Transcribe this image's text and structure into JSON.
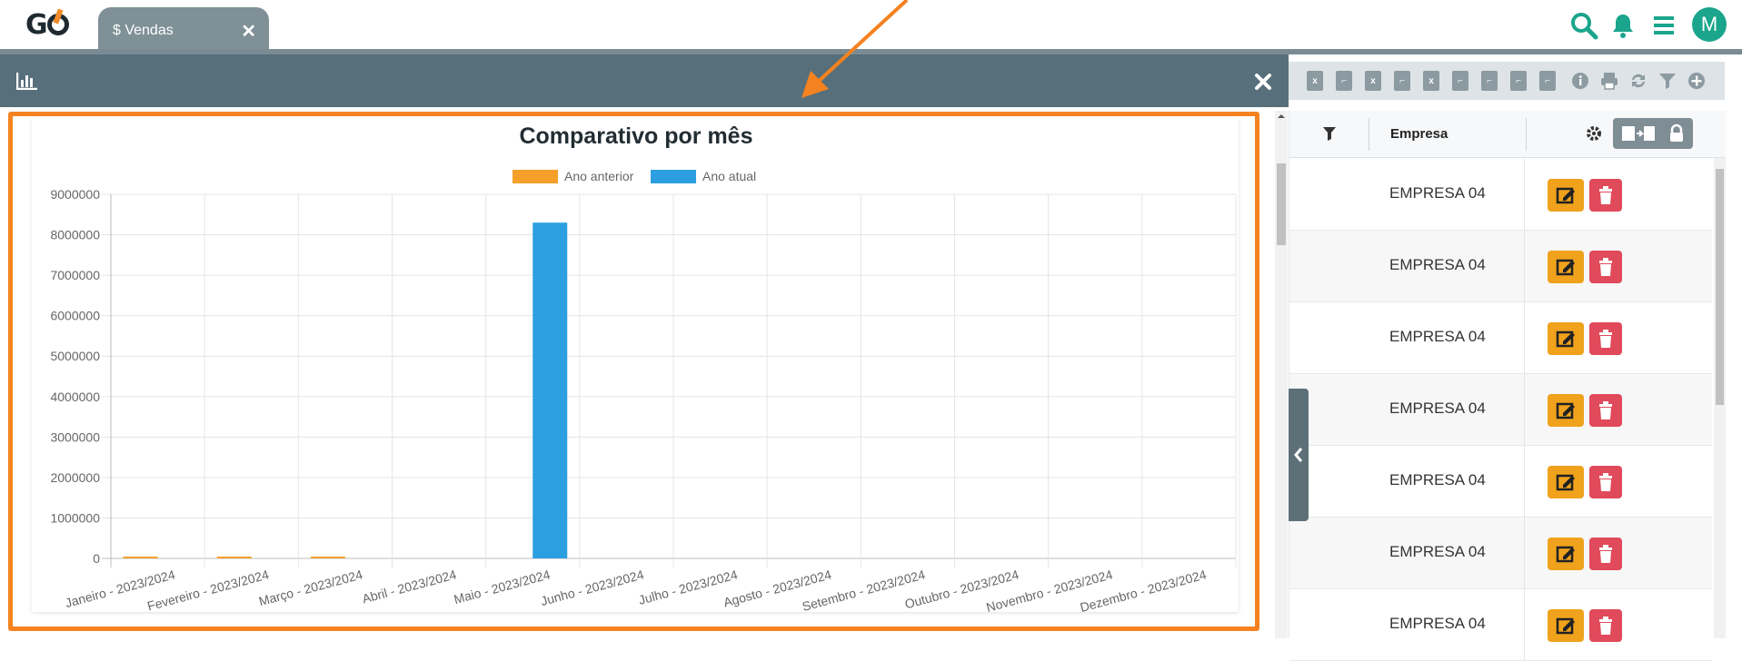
{
  "app": {
    "logo_text": "GO",
    "tab_label": "$ Vendas",
    "avatar_letter": "M"
  },
  "colors": {
    "teal": "#1aa58c",
    "header": "#566f7a",
    "highlight": "#f58220",
    "bar_previous": "#f5a02a",
    "bar_current": "#2c9fe0",
    "edit": "#f0a21c",
    "delete": "#e04a5a"
  },
  "icons": {
    "topbar": [
      "search-icon",
      "bell-icon",
      "menu-icon"
    ],
    "modal_header": "bar-chart-icon",
    "modal_close": "close-icon",
    "toolbar": [
      "excel-icon",
      "pdf-icon",
      "excel-icon",
      "pdf-icon",
      "excel-icon",
      "pdf-icon",
      "pdf-icon",
      "pdf-icon",
      "pdf-icon",
      "info-icon",
      "print-icon",
      "refresh-icon",
      "filter-icon",
      "add-icon"
    ]
  },
  "table": {
    "header_empresa": "Empresa",
    "rows": [
      {
        "empresa": "EMPRESA 04"
      },
      {
        "empresa": "EMPRESA 04"
      },
      {
        "empresa": "EMPRESA 04"
      },
      {
        "empresa": "EMPRESA 04"
      },
      {
        "empresa": "EMPRESA 04"
      },
      {
        "empresa": "EMPRESA 04"
      },
      {
        "empresa": "EMPRESA 04"
      }
    ]
  },
  "chart_data": {
    "type": "bar",
    "title": "Comparativo por mês",
    "categories": [
      "Janeiro - 2023/2024",
      "Fevereiro - 2023/2024",
      "Março - 2023/2024",
      "Abril - 2023/2024",
      "Maio - 2023/2024",
      "Junho - 2023/2024",
      "Julho - 2023/2024",
      "Agosto - 2023/2024",
      "Setembro - 2023/2024",
      "Outubro - 2023/2024",
      "Novembro - 2023/2024",
      "Dezembro - 2023/2024"
    ],
    "series": [
      {
        "name": "Ano anterior",
        "color": "#f5a02a",
        "values": [
          30000,
          30000,
          20000,
          0,
          0,
          0,
          0,
          0,
          0,
          0,
          0,
          0
        ]
      },
      {
        "name": "Ano atual",
        "color": "#2c9fe0",
        "values": [
          0,
          0,
          0,
          0,
          8300000,
          0,
          0,
          0,
          0,
          0,
          0,
          0
        ]
      }
    ],
    "ylim": [
      0,
      9000000
    ],
    "yticks": [
      "0",
      "1000000",
      "2000000",
      "3000000",
      "4000000",
      "5000000",
      "6000000",
      "7000000",
      "8000000",
      "9000000"
    ],
    "legend": "top-center",
    "grid": true
  }
}
